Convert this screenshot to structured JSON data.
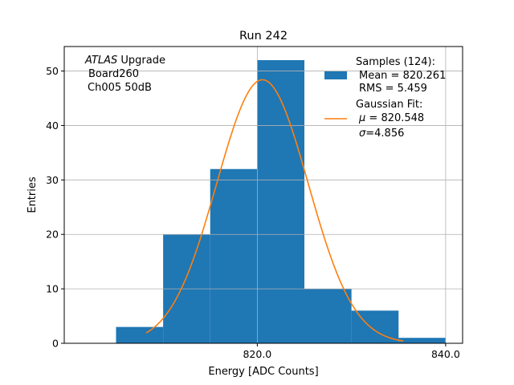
{
  "chart_data": {
    "type": "bar",
    "title": "Run 242",
    "xlabel": "Energy [ADC Counts]",
    "ylabel": "Entries",
    "xlim": [
      799.5,
      841.8
    ],
    "ylim": [
      0,
      54.5
    ],
    "xticks": [
      820.0,
      840.0
    ],
    "xtick_labels": [
      "820.0",
      "840.0"
    ],
    "yticks": [
      0,
      10,
      20,
      30,
      40,
      50
    ],
    "ytick_labels": [
      "0",
      "10",
      "20",
      "30",
      "40",
      "50"
    ],
    "grid": true,
    "bins": [
      {
        "x0": 805,
        "x1": 810,
        "value": 3
      },
      {
        "x0": 810,
        "x1": 815,
        "value": 20
      },
      {
        "x0": 815,
        "x1": 820,
        "value": 32
      },
      {
        "x0": 820,
        "x1": 825,
        "value": 52
      },
      {
        "x0": 825,
        "x1": 830,
        "value": 10
      },
      {
        "x0": 830,
        "x1": 835,
        "value": 6
      },
      {
        "x0": 835,
        "x1": 840,
        "value": 1
      }
    ],
    "fit": {
      "type": "gaussian",
      "mu": 820.548,
      "sigma": 4.856,
      "amplitude": 48.4,
      "x_start": 808.2,
      "x_end": 835.5
    },
    "annotation_lines": [
      "ATLAS",
      " Upgrade",
      "Board260",
      "Ch005 50dB"
    ],
    "legend_position": "top-right",
    "legend": {
      "samples_title": "Samples (124):",
      "samples_mean": "Mean = 820.261",
      "samples_rms": "RMS = 5.459",
      "fit_title": "Gaussian Fit:",
      "fit_mu_symbol": "μ",
      "fit_mu_text": " = 820.548",
      "fit_sigma_symbol": "σ",
      "fit_sigma_text": "=4.856"
    },
    "colors": {
      "bars": "#1f77b4",
      "fit": "#ff7f0e",
      "grid": "#b0b0b0"
    }
  }
}
